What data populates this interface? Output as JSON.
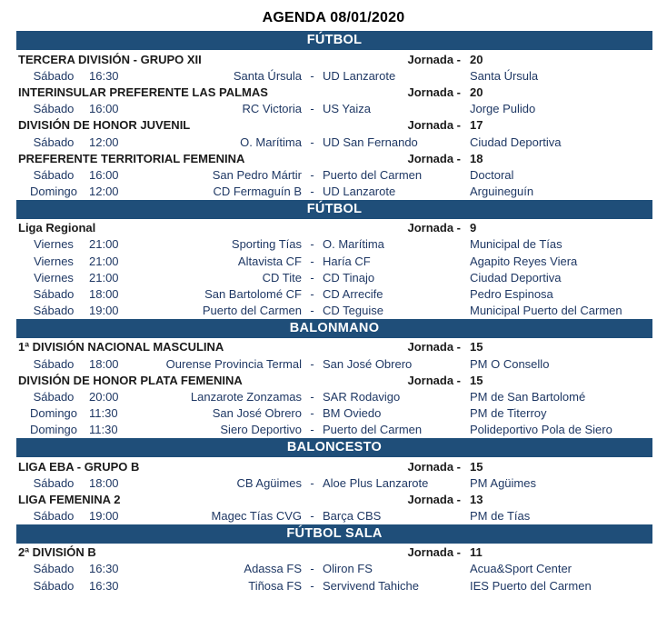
{
  "title": "AGENDA 08/01/2020",
  "jornada_label": "Jornada -",
  "team_separator": "-",
  "colors": {
    "banner_bg": "#1F4E79",
    "banner_text": "#FFFFFF",
    "league_text": "#1B1B1B",
    "row_text": "#1F3864"
  },
  "sections": [
    {
      "sport": "FÚTBOL",
      "leagues": [
        {
          "name": "TERCERA DIVISIÓN - GRUPO XII",
          "jornada": "20",
          "matches": [
            {
              "day": "Sábado",
              "time": "16:30",
              "home": "Santa Úrsula",
              "away": "UD Lanzarote",
              "venue": "Santa Úrsula"
            }
          ]
        },
        {
          "name": "INTERINSULAR PREFERENTE LAS PALMAS",
          "jornada": "20",
          "matches": [
            {
              "day": "Sábado",
              "time": "16:00",
              "home": "RC Victoria",
              "away": "US Yaiza",
              "venue": "Jorge Pulido"
            }
          ]
        },
        {
          "name": "DIVISIÓN DE HONOR JUVENIL",
          "jornada": "17",
          "matches": [
            {
              "day": "Sábado",
              "time": "12:00",
              "home": "O. Marítima",
              "away": "UD San Fernando",
              "venue": "Ciudad Deportiva"
            }
          ]
        },
        {
          "name": "PREFERENTE TERRITORIAL FEMENINA",
          "jornada": "18",
          "matches": [
            {
              "day": "Sábado",
              "time": "16:00",
              "home": "San Pedro Mártir",
              "away": "Puerto del Carmen",
              "venue": "Doctoral"
            },
            {
              "day": "Domingo",
              "time": "12:00",
              "home": "CD Fermaguín B",
              "away": "UD Lanzarote",
              "venue": "Arguineguín"
            }
          ]
        }
      ]
    },
    {
      "sport": "FÚTBOL",
      "leagues": [
        {
          "name": "Liga Regional",
          "jornada": "9",
          "matches": [
            {
              "day": "Viernes",
              "time": "21:00",
              "home": "Sporting Tías",
              "away": "O. Marítima",
              "venue": "Municipal de Tías"
            },
            {
              "day": "Viernes",
              "time": "21:00",
              "home": "Altavista CF",
              "away": "Haría CF",
              "venue": "Agapito Reyes Viera"
            },
            {
              "day": "Viernes",
              "time": "21:00",
              "home": "CD Tite",
              "away": "CD Tinajo",
              "venue": "Ciudad Deportiva"
            },
            {
              "day": "Sábado",
              "time": "18:00",
              "home": "San Bartolomé CF",
              "away": "CD Arrecife",
              "venue": "Pedro Espinosa"
            },
            {
              "day": "Sábado",
              "time": "19:00",
              "home": "Puerto del Carmen",
              "away": "CD Teguise",
              "venue": "Municipal Puerto del Carmen"
            }
          ]
        }
      ]
    },
    {
      "sport": "BALONMANO",
      "leagues": [
        {
          "name": "1ª DIVISIÓN NACIONAL MASCULINA",
          "jornada": "15",
          "matches": [
            {
              "day": "Sábado",
              "time": "18:00",
              "home": "Ourense Provincia Termal",
              "away": "San José Obrero",
              "venue": "PM O Consello"
            }
          ]
        },
        {
          "name": "DIVISIÓN DE HONOR PLATA FEMENINA",
          "jornada": "15",
          "matches": [
            {
              "day": "Sábado",
              "time": "20:00",
              "home": "Lanzarote Zonzamas",
              "away": "SAR Rodavigo",
              "venue": "PM de San Bartolomé"
            },
            {
              "day": "Domingo",
              "time": "11:30",
              "home": "San José Obrero",
              "away": "BM Oviedo",
              "venue": "PM de Titerroy"
            },
            {
              "day": "Domingo",
              "time": "11:30",
              "home": "Siero Deportivo",
              "away": "Puerto del Carmen",
              "venue": "Polideportivo Pola de Siero"
            }
          ]
        }
      ]
    },
    {
      "sport": "BALONCESTO",
      "leagues": [
        {
          "name": "LIGA EBA - GRUPO B",
          "jornada": "15",
          "matches": [
            {
              "day": "Sábado",
              "time": "18:00",
              "home": "CB Agüimes",
              "away": "Aloe Plus Lanzarote",
              "venue": "PM Agüimes"
            }
          ]
        },
        {
          "name": "LIGA FEMENINA 2",
          "jornada": "13",
          "matches": [
            {
              "day": "Sábado",
              "time": "19:00",
              "home": "Magec Tías CVG",
              "away": "Barça CBS",
              "venue": "PM de Tías"
            }
          ]
        }
      ]
    },
    {
      "sport": "FÚTBOL SALA",
      "leagues": [
        {
          "name": "2ª DIVISIÓN B",
          "jornada": "11",
          "matches": [
            {
              "day": "Sábado",
              "time": "16:30",
              "home": "Adassa FS",
              "away": "Oliron FS",
              "venue": "Acua&Sport Center"
            },
            {
              "day": "Sábado",
              "time": "16:30",
              "home": "Tiñosa FS",
              "away": "Servivend Tahiche",
              "venue": "IES Puerto del Carmen"
            }
          ]
        }
      ]
    }
  ]
}
